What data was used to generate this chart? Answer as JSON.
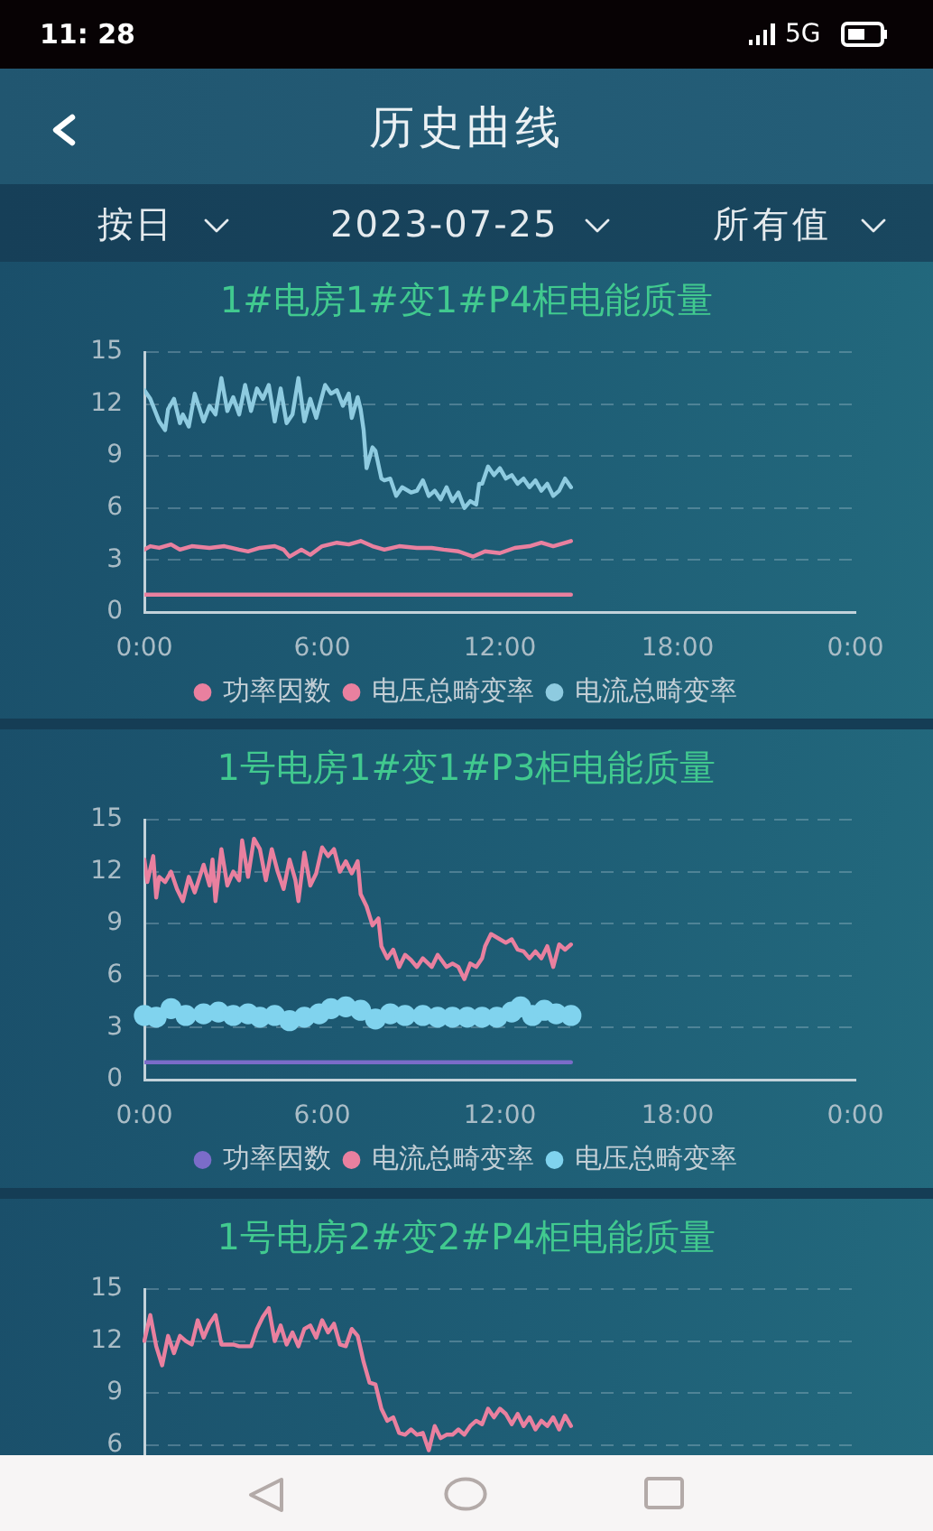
{
  "chart_data": [
    {
      "type": "line",
      "title": "1#电房1#变1#P4柜电能质量",
      "annotations": [
        "11: 28",
        "5G",
        "历史曲线",
        "按日",
        "2023-07-25",
        "所有值"
      ],
      "xlim": [
        0,
        24
      ],
      "xticks": [
        {
          "value": 0,
          "label": "0:00"
        },
        {
          "value": 6,
          "label": "6:00"
        },
        {
          "value": 12,
          "label": "12:00"
        },
        {
          "value": 18,
          "label": "18:00"
        },
        {
          "value": 24,
          "label": "0:00"
        }
      ],
      "ylim": [
        0,
        15
      ],
      "yticks": [
        0,
        3,
        6,
        9,
        12,
        15
      ],
      "grid": "y",
      "legend": "bottom",
      "marker": "none",
      "series": [
        {
          "name": "功率因数",
          "color": "#e9809f",
          "x": [
            0,
            14.4
          ],
          "values": [
            1,
            1
          ]
        },
        {
          "name": "电压总畸变率",
          "color": "#e9809f",
          "x": [
            0,
            0.2,
            0.5,
            0.9,
            1.2,
            1.6,
            2.2,
            2.7,
            3.2,
            3.5,
            3.9,
            4.4,
            4.7,
            4.9,
            5.3,
            5.6,
            6.0,
            6.5,
            6.9,
            7.3,
            7.7,
            8.1,
            8.6,
            9.2,
            9.7,
            10.1,
            10.6,
            11.1,
            11.5,
            12.0,
            12.5,
            13.0,
            13.4,
            13.8,
            14.4
          ],
          "values": [
            3.6,
            3.8,
            3.7,
            3.9,
            3.6,
            3.8,
            3.7,
            3.8,
            3.6,
            3.5,
            3.7,
            3.8,
            3.6,
            3.2,
            3.6,
            3.3,
            3.8,
            4.0,
            3.9,
            4.1,
            3.8,
            3.6,
            3.8,
            3.7,
            3.7,
            3.6,
            3.5,
            3.2,
            3.5,
            3.4,
            3.7,
            3.8,
            4.0,
            3.8,
            4.1
          ]
        },
        {
          "name": "电流总畸变率",
          "color": "#8ecbe0",
          "x": [
            0,
            0.2,
            0.5,
            0.7,
            0.8,
            1.0,
            1.2,
            1.3,
            1.5,
            1.7,
            2.0,
            2.2,
            2.4,
            2.6,
            2.8,
            3.0,
            3.2,
            3.4,
            3.6,
            3.8,
            4.0,
            4.2,
            4.4,
            4.6,
            4.8,
            5.0,
            5.2,
            5.4,
            5.6,
            5.8,
            6.1,
            6.3,
            6.5,
            6.7,
            6.9,
            7.0,
            7.2,
            7.3,
            7.4,
            7.5,
            7.7,
            7.8,
            8.0,
            8.1,
            8.3,
            8.5,
            8.7,
            9.0,
            9.2,
            9.4,
            9.6,
            9.8,
            10.0,
            10.2,
            10.4,
            10.6,
            10.8,
            11.0,
            11.2,
            11.3,
            11.4,
            11.6,
            11.8,
            12.0,
            12.2,
            12.4,
            12.6,
            12.8,
            13.0,
            13.2,
            13.4,
            13.6,
            13.8,
            14.0,
            14.2,
            14.4
          ],
          "values": [
            12.8,
            12.3,
            11.0,
            10.5,
            11.7,
            12.3,
            10.9,
            11.4,
            10.7,
            12.6,
            11.0,
            11.9,
            11.4,
            13.5,
            11.6,
            12.4,
            11.4,
            13.1,
            11.6,
            12.9,
            12.3,
            13.1,
            11.0,
            12.9,
            10.9,
            11.4,
            13.5,
            11.0,
            12.3,
            11.2,
            13.1,
            12.6,
            12.8,
            11.9,
            12.6,
            11.2,
            12.4,
            11.7,
            10.5,
            8.3,
            9.5,
            9.3,
            7.7,
            7.6,
            7.7,
            6.7,
            7.2,
            6.9,
            7.0,
            7.6,
            6.7,
            7.0,
            6.5,
            7.2,
            6.4,
            6.9,
            6.0,
            6.4,
            6.2,
            7.4,
            7.4,
            8.4,
            7.9,
            8.3,
            7.7,
            7.9,
            7.4,
            7.7,
            7.2,
            7.6,
            7.0,
            7.4,
            6.7,
            7.0,
            7.7,
            7.2
          ]
        }
      ]
    },
    {
      "type": "line",
      "title": "1号电房1#变1#P3柜电能质量",
      "xlim": [
        0,
        24
      ],
      "xticks": [
        {
          "value": 0,
          "label": "0:00"
        },
        {
          "value": 6,
          "label": "6:00"
        },
        {
          "value": 12,
          "label": "12:00"
        },
        {
          "value": 18,
          "label": "18:00"
        },
        {
          "value": 24,
          "label": "0:00"
        }
      ],
      "ylim": [
        0,
        15
      ],
      "yticks": [
        0,
        3,
        6,
        9,
        12,
        15
      ],
      "grid": "y",
      "legend": "bottom",
      "marker": "none",
      "series": [
        {
          "name": "功率因数",
          "color": "#7b6cc9",
          "x": [
            0,
            14.4
          ],
          "values": [
            1,
            1
          ]
        },
        {
          "name": "电流总畸变率",
          "color": "#e9809f",
          "x": [
            0,
            0.1,
            0.3,
            0.4,
            0.5,
            0.7,
            0.9,
            1.1,
            1.3,
            1.5,
            1.7,
            2.0,
            2.2,
            2.3,
            2.4,
            2.6,
            2.8,
            3.0,
            3.2,
            3.3,
            3.5,
            3.7,
            3.9,
            4.1,
            4.3,
            4.5,
            4.7,
            4.9,
            5.1,
            5.2,
            5.4,
            5.6,
            5.8,
            6.0,
            6.2,
            6.4,
            6.6,
            6.8,
            7.0,
            7.2,
            7.3,
            7.5,
            7.7,
            7.9,
            8.0,
            8.2,
            8.4,
            8.6,
            8.8,
            9.0,
            9.2,
            9.4,
            9.7,
            9.9,
            10.2,
            10.4,
            10.6,
            10.8,
            11.0,
            11.2,
            11.4,
            11.5,
            11.7,
            12.0,
            12.2,
            12.4,
            12.6,
            12.8,
            13.0,
            13.2,
            13.4,
            13.6,
            13.8,
            14.0,
            14.2,
            14.4
          ],
          "values": [
            12.7,
            11.4,
            12.9,
            10.5,
            11.7,
            11.4,
            12.0,
            11.0,
            10.3,
            11.7,
            10.8,
            12.4,
            11.2,
            12.7,
            10.3,
            13.3,
            11.2,
            12.0,
            11.5,
            13.8,
            11.7,
            13.9,
            13.3,
            11.5,
            13.3,
            12.0,
            11.0,
            12.7,
            11.5,
            10.3,
            13.1,
            11.2,
            11.9,
            13.4,
            12.9,
            13.3,
            12.0,
            12.6,
            11.9,
            12.6,
            10.7,
            10.0,
            8.9,
            9.3,
            7.7,
            7.0,
            7.5,
            6.5,
            7.2,
            6.9,
            6.5,
            7.0,
            6.5,
            7.2,
            6.5,
            6.7,
            6.5,
            5.8,
            6.7,
            6.5,
            7.0,
            7.7,
            8.4,
            8.1,
            7.9,
            8.1,
            7.5,
            7.4,
            7.0,
            7.4,
            7.0,
            7.7,
            6.5,
            7.8,
            7.5,
            7.8
          ]
        },
        {
          "name": "电压总畸变率",
          "color": "#80d3ee",
          "type": "scatter",
          "marker": "circle",
          "x": [
            0,
            0.4,
            0.9,
            1.4,
            2.0,
            2.5,
            3.0,
            3.5,
            3.9,
            4.4,
            4.9,
            5.4,
            5.9,
            6.3,
            6.8,
            7.3,
            7.8,
            8.3,
            8.8,
            9.4,
            9.9,
            10.4,
            10.9,
            11.4,
            11.9,
            12.4,
            12.7,
            13.1,
            13.5,
            13.9,
            14.4
          ],
          "values": [
            3.7,
            3.6,
            4.1,
            3.7,
            3.8,
            3.9,
            3.7,
            3.8,
            3.6,
            3.7,
            3.4,
            3.6,
            3.8,
            4.1,
            4.2,
            4.0,
            3.5,
            3.8,
            3.7,
            3.7,
            3.6,
            3.6,
            3.6,
            3.6,
            3.6,
            3.9,
            4.2,
            3.7,
            4.0,
            3.8,
            3.7
          ]
        }
      ]
    },
    {
      "type": "line",
      "title": "1号电房2#变2#P4柜电能质量",
      "categories": [
        null,
        null,
        null,
        null,
        null,
        null,
        null,
        null,
        null,
        null,
        null,
        null,
        null,
        null,
        null,
        null,
        null,
        null,
        null,
        null,
        null,
        null,
        null,
        null,
        null,
        null,
        null,
        null,
        null,
        null,
        null,
        null,
        null,
        null,
        null,
        null,
        null,
        null,
        null,
        null,
        null,
        null,
        null,
        null,
        null,
        null,
        null,
        null,
        null,
        null,
        null,
        null,
        null,
        null,
        null,
        null,
        null,
        null,
        null,
        null,
        null,
        null,
        null,
        null,
        null,
        null,
        null,
        null,
        null,
        null,
        null,
        null,
        null,
        null,
        null,
        null,
        null,
        null,
        null,
        null,
        null,
        null,
        null,
        null,
        null,
        null,
        null,
        null,
        null,
        null,
        null,
        null,
        null,
        null,
        null,
        null,
        null,
        null,
        null,
        null,
        null,
        null,
        null,
        null,
        null,
        null,
        null,
        null,
        null,
        null,
        null,
        null,
        null,
        null,
        null,
        null,
        null,
        null,
        null,
        null,
        null
      ],
      "ylim": [
        0,
        15
      ],
      "yticks": [
        6,
        9,
        12,
        15
      ],
      "grid": "y",
      "marker": "none",
      "tick_labels": "y",
      "series": [
        {
          "color": "#e9809f",
          "values": [
            12.0,
            13.5,
            11.7,
            10.6,
            12.3,
            11.3,
            12.3,
            12.0,
            11.8,
            13.2,
            12.2,
            13.0,
            13.5,
            11.8,
            11.8,
            11.8,
            11.7,
            11.7,
            11.7,
            12.7,
            13.4,
            13.9,
            12.0,
            12.9,
            11.8,
            12.5,
            11.7,
            12.7,
            12.9,
            12.2,
            13.2,
            12.5,
            13.0,
            11.8,
            11.7,
            12.7,
            12.3,
            10.8,
            9.6,
            9.5,
            8.1,
            7.4,
            7.6,
            6.7,
            6.6,
            6.9,
            6.6,
            6.7,
            5.7,
            7.1,
            6.4,
            6.6,
            6.6,
            6.9,
            6.6,
            7.1,
            7.4,
            7.2,
            8.1,
            7.6,
            8.1,
            7.8,
            7.2,
            7.8,
            7.1,
            7.6,
            6.9,
            7.4,
            7.1,
            7.6,
            6.9,
            7.7,
            7.1,
            null,
            null,
            null,
            null,
            null,
            null,
            null,
            null,
            null,
            null,
            null,
            null,
            null,
            null,
            null,
            null,
            null,
            null,
            null,
            null,
            null,
            null,
            null,
            null,
            null,
            null,
            null,
            null,
            null,
            null,
            null,
            null,
            null,
            null,
            null,
            null,
            null,
            null,
            null,
            null,
            null,
            null,
            null,
            null,
            null,
            null,
            null,
            null
          ]
        }
      ]
    }
  ]
}
